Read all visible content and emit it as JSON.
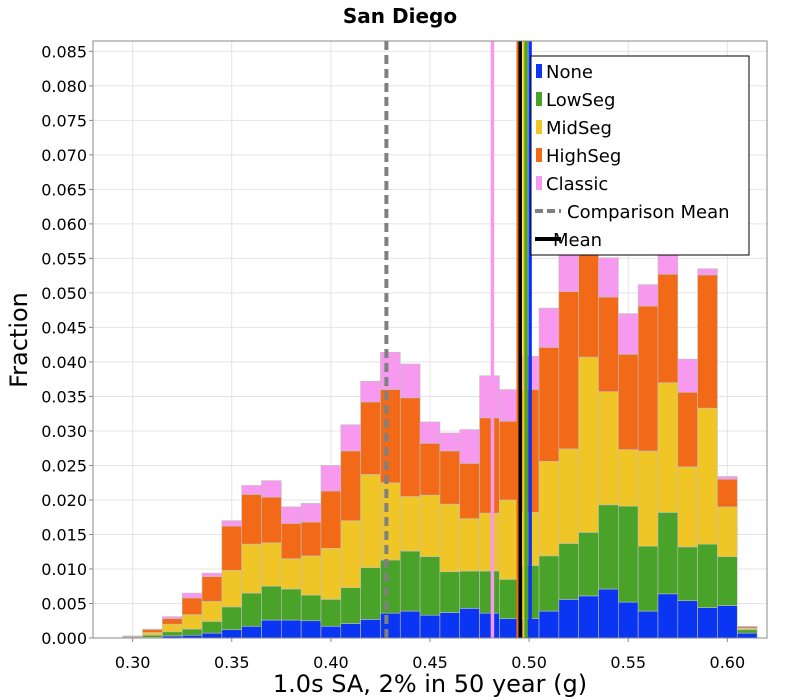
{
  "chart_data": {
    "type": "bar",
    "stacked": true,
    "title": "San Diego",
    "xlabel": "1.0s SA, 2% in 50 year (g)",
    "ylabel": "Fraction",
    "xlim": [
      0.28,
      0.62
    ],
    "ylim": [
      0,
      0.0865
    ],
    "xticks": [
      0.3,
      0.35,
      0.4,
      0.45,
      0.5,
      0.55,
      0.6
    ],
    "xtick_labels": [
      "0.30",
      "0.35",
      "0.40",
      "0.45",
      "0.50",
      "0.55",
      "0.60"
    ],
    "yticks": [
      0,
      0.005,
      0.01,
      0.015,
      0.02,
      0.025,
      0.03,
      0.035,
      0.04,
      0.045,
      0.05,
      0.055,
      0.06,
      0.065,
      0.07,
      0.075,
      0.08,
      0.085
    ],
    "ytick_labels": [
      "0.000",
      "0.005",
      "0.010",
      "0.015",
      "0.020",
      "0.025",
      "0.030",
      "0.035",
      "0.040",
      "0.045",
      "0.050",
      "0.055",
      "0.060",
      "0.065",
      "0.070",
      "0.075",
      "0.080",
      "0.085"
    ],
    "grid": true,
    "legend_position": "top-right",
    "bin_width": 0.01,
    "bin_starts": [
      0.285,
      0.295,
      0.305,
      0.315,
      0.325,
      0.335,
      0.345,
      0.355,
      0.365,
      0.375,
      0.385,
      0.395,
      0.405,
      0.415,
      0.425,
      0.435,
      0.445,
      0.455,
      0.465,
      0.475,
      0.485,
      0.495,
      0.505,
      0.515,
      0.525,
      0.535,
      0.545,
      0.555,
      0.565,
      0.575,
      0.585,
      0.595,
      0.605,
      0.615
    ],
    "series": [
      {
        "name": "None",
        "color": "#0a35f2",
        "values": [
          0,
          0,
          0.0001,
          0.0003,
          0.0004,
          0.0007,
          0.0012,
          0.0017,
          0.0026,
          0.0026,
          0.0025,
          0.0017,
          0.0021,
          0.0027,
          0.0036,
          0.0039,
          0.0033,
          0.0037,
          0.0043,
          0.0036,
          0.0028,
          0.0028,
          0.0039,
          0.0056,
          0.0061,
          0.0071,
          0.0052,
          0.0039,
          0.0064,
          0.0054,
          0.0044,
          0.0047,
          0.0007,
          0
        ]
      },
      {
        "name": "LowSeg",
        "color": "#4aa329",
        "values": [
          0,
          0.0001,
          0.0003,
          0.0006,
          0.0009,
          0.0017,
          0.0033,
          0.0048,
          0.0049,
          0.0045,
          0.0037,
          0.0039,
          0.0052,
          0.0075,
          0.0077,
          0.0087,
          0.0085,
          0.0059,
          0.0054,
          0.0061,
          0.0057,
          0.0077,
          0.008,
          0.0081,
          0.0092,
          0.0122,
          0.0139,
          0.0094,
          0.0118,
          0.0078,
          0.0092,
          0.0071,
          0.0005,
          0
        ]
      },
      {
        "name": "MidSeg",
        "color": "#f0c626",
        "values": [
          0,
          0.0001,
          0.0004,
          0.0011,
          0.0021,
          0.0029,
          0.0053,
          0.0071,
          0.0063,
          0.0044,
          0.0057,
          0.0074,
          0.0097,
          0.0135,
          0.0112,
          0.0079,
          0.0089,
          0.0098,
          0.0076,
          0.0084,
          0.0115,
          0.0077,
          0.0137,
          0.0137,
          0.0254,
          0.0164,
          0.0082,
          0.0138,
          0.0188,
          0.0116,
          0.0197,
          0.0072,
          0.0002,
          0
        ]
      },
      {
        "name": "HighSeg",
        "color": "#f26a18",
        "values": [
          0,
          0.0001,
          0.0004,
          0.0008,
          0.0024,
          0.0036,
          0.0064,
          0.0072,
          0.0066,
          0.0051,
          0.0049,
          0.0083,
          0.0101,
          0.0105,
          0.0135,
          0.0143,
          0.0075,
          0.0077,
          0.008,
          0.0138,
          0.0114,
          0.0178,
          0.0165,
          0.0228,
          0.0247,
          0.0137,
          0.0138,
          0.021,
          0.0157,
          0.0108,
          0.0193,
          0.004,
          0.0002,
          0
        ]
      },
      {
        "name": "Classic",
        "color": "#f799ef",
        "values": [
          0,
          0,
          0.0001,
          0.0003,
          0.0007,
          0.0005,
          0.0008,
          0.0013,
          0.0024,
          0.0024,
          0.0027,
          0.0037,
          0.0038,
          0.003,
          0.0054,
          0.0049,
          0.0031,
          0.0026,
          0.0049,
          0.0061,
          0.0046,
          0.0048,
          0.0057,
          0.0074,
          0.0059,
          0.0057,
          0.0059,
          0.0031,
          0.0043,
          0.0048,
          0.0009,
          0.0004,
          0.0001,
          0
        ]
      }
    ],
    "vertical_lines": [
      {
        "name": "Comparison Mean",
        "x": 0.428,
        "color": "#808080",
        "style": "dashed"
      },
      {
        "name": "Classic",
        "x": 0.4815,
        "color": "#f799ef",
        "style": "solid"
      },
      {
        "name": "HighSeg",
        "x": 0.4945,
        "color": "#f26a18",
        "style": "solid"
      },
      {
        "name": "Mean",
        "x": 0.4955,
        "color": "#000000",
        "style": "solid"
      },
      {
        "name": "MidSeg",
        "x": 0.4975,
        "color": "#f0c626",
        "style": "solid"
      },
      {
        "name": "LowSeg",
        "x": 0.4985,
        "color": "#4aa329",
        "style": "solid"
      },
      {
        "name": "None",
        "x": 0.5005,
        "color": "#0a35f2",
        "style": "solid"
      }
    ],
    "legend": [
      {
        "label": "None",
        "color": "#0a35f2",
        "kind": "bar"
      },
      {
        "label": "LowSeg",
        "color": "#4aa329",
        "kind": "bar"
      },
      {
        "label": "MidSeg",
        "color": "#f0c626",
        "kind": "bar"
      },
      {
        "label": "HighSeg",
        "color": "#f26a18",
        "kind": "bar"
      },
      {
        "label": "Classic",
        "color": "#f799ef",
        "kind": "bar"
      },
      {
        "label": "Comparison Mean",
        "color": "#808080",
        "kind": "dashed-line"
      },
      {
        "label": "Mean",
        "color": "#000000",
        "kind": "line"
      }
    ]
  }
}
